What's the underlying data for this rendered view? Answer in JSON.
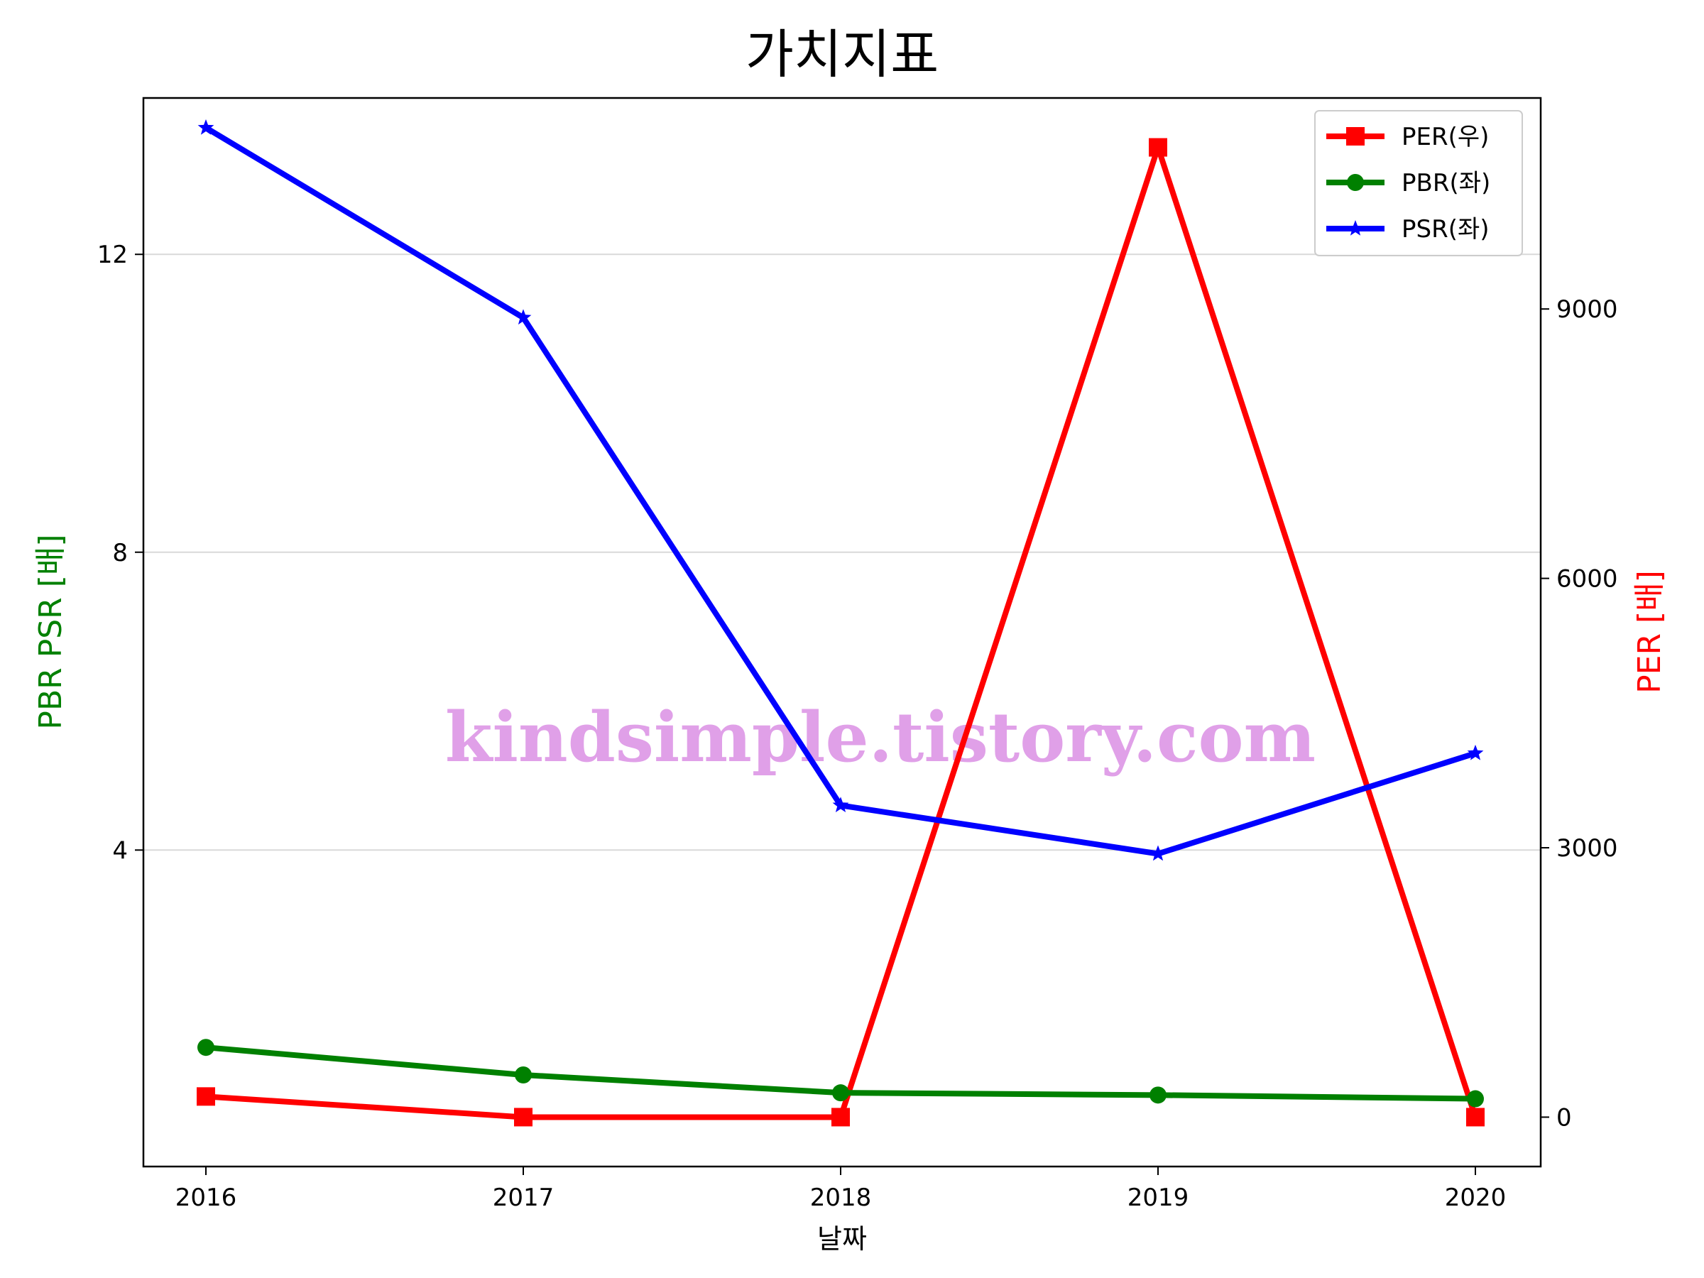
{
  "chart_data": {
    "type": "line",
    "title": "가치지표",
    "xlabel": "날짜",
    "ylabel_left": "PBR PSR [배]",
    "ylabel_right": "PER [배]",
    "categories": [
      "2016",
      "2017",
      "2018",
      "2019",
      "2020"
    ],
    "ylim_left": [
      -0.25,
      14.1
    ],
    "yticks_left": [
      4,
      8,
      12
    ],
    "ylim_right": [
      -550,
      11350
    ],
    "yticks_right": [
      0,
      3000,
      6000,
      9000
    ],
    "grid": "horizontal (left axis)",
    "legend_position": "top-right",
    "series": [
      {
        "name": "PER(우)",
        "axis": "right",
        "marker": "square",
        "color": "#ff0000",
        "values": [
          230,
          0,
          0,
          10800,
          0
        ]
      },
      {
        "name": "PBR(좌)",
        "axis": "left",
        "marker": "circle",
        "color": "#008000",
        "values": [
          1.35,
          0.98,
          0.74,
          0.71,
          0.66
        ]
      },
      {
        "name": "PSR(좌)",
        "axis": "left",
        "marker": "star",
        "color": "#0000ff",
        "values": [
          13.7,
          11.15,
          4.6,
          3.95,
          5.3
        ]
      }
    ],
    "watermark": "kindsimple.tistory.com",
    "colors": {
      "left_label": "#008000",
      "right_label": "#ff0000",
      "watermark": "#e0a0e8",
      "grid": "#d9d9d9"
    }
  }
}
